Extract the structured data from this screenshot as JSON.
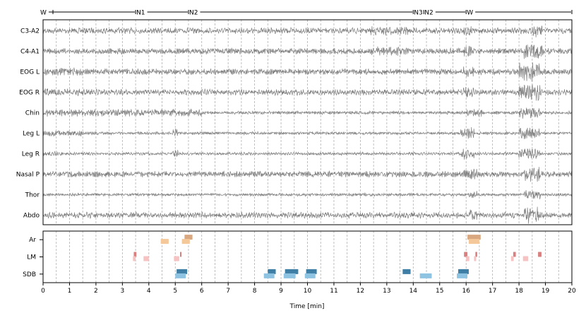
{
  "chart_data": [
    {
      "type": "line",
      "title": "",
      "xlabel": "",
      "ylabel": "",
      "xlim": [
        0,
        20
      ],
      "grid": "vertical dashed every 0.5 min",
      "trace_color": "#808080",
      "sleep_stages": [
        {
          "label": "W",
          "start": 0.0,
          "end": 3.5
        },
        {
          "label": "N1",
          "start": 3.5,
          "end": 5.5
        },
        {
          "label": "N2",
          "start": 5.5,
          "end": 14.0
        },
        {
          "label": "N3",
          "start": 14.0,
          "end": 14.4
        },
        {
          "label": "N2",
          "start": 14.4,
          "end": 16.0
        },
        {
          "label": "W",
          "start": 16.0,
          "end": 20.0
        }
      ],
      "channels": [
        {
          "name": "C3-A2",
          "amplitude": "medium",
          "bursts": [
            [
              12.4,
              13.8,
              1.6
            ],
            [
              15.9,
              16.2,
              1.8
            ],
            [
              18.5,
              18.9,
              2.2
            ]
          ]
        },
        {
          "name": "C4-A1",
          "amplitude": "medium",
          "bursts": [
            [
              12.4,
              13.8,
              1.5
            ],
            [
              15.9,
              16.2,
              1.8
            ],
            [
              18.2,
              18.9,
              2.6
            ]
          ]
        },
        {
          "name": "EOG L",
          "amplitude": "medium",
          "bursts": [
            [
              0.0,
              1.5,
              1.3
            ],
            [
              15.9,
              16.3,
              1.8
            ],
            [
              18.0,
              18.8,
              3.2
            ]
          ]
        },
        {
          "name": "EOG R",
          "amplitude": "medium",
          "bursts": [
            [
              0.0,
              1.5,
              1.3
            ],
            [
              15.9,
              16.3,
              1.8
            ],
            [
              18.0,
              18.8,
              3.2
            ]
          ]
        },
        {
          "name": "Chin",
          "amplitude": "high-to-low",
          "bursts": [
            [
              0.0,
              6.0,
              2.2
            ],
            [
              16.0,
              16.6,
              2.5
            ],
            [
              18.0,
              18.8,
              3.4
            ]
          ]
        },
        {
          "name": "Leg L",
          "amplitude": "low",
          "bursts": [
            [
              0.0,
              1.5,
              2.0
            ],
            [
              4.9,
              5.1,
              3.0
            ],
            [
              15.8,
              16.3,
              4.0
            ],
            [
              18.0,
              18.8,
              4.0
            ]
          ]
        },
        {
          "name": "Leg R",
          "amplitude": "low",
          "bursts": [
            [
              0.0,
              0.8,
              1.5
            ],
            [
              4.9,
              5.1,
              2.5
            ],
            [
              15.8,
              16.3,
              4.0
            ],
            [
              18.0,
              18.8,
              4.0
            ]
          ]
        },
        {
          "name": "Nasal P",
          "amplitude": "medium",
          "bursts": [
            [
              15.9,
              16.4,
              2.0
            ],
            [
              18.2,
              18.8,
              2.5
            ]
          ]
        },
        {
          "name": "Thor",
          "amplitude": "low",
          "bursts": [
            [
              16.1,
              16.4,
              2.5
            ],
            [
              18.2,
              18.8,
              3.0
            ]
          ]
        },
        {
          "name": "Abdo",
          "amplitude": "medium",
          "bursts": [
            [
              16.1,
              16.4,
              2.0
            ],
            [
              18.2,
              18.8,
              2.8
            ]
          ]
        }
      ]
    },
    {
      "type": "scatter",
      "title": "",
      "xlabel": "Time [min]",
      "ylabel": "",
      "xlim": [
        0,
        20
      ],
      "xticks": [
        "0",
        "1",
        "2",
        "3",
        "4",
        "5",
        "6",
        "7",
        "8",
        "9",
        "10",
        "11",
        "12",
        "13",
        "14",
        "15",
        "16",
        "17",
        "18",
        "19",
        "20"
      ],
      "grid": "vertical dashed every 0.5 min",
      "rows": [
        {
          "name": "Ar",
          "events": [
            {
              "start": 5.35,
              "end": 5.65,
              "level": "upper",
              "color": "#d9a880"
            },
            {
              "start": 4.45,
              "end": 4.75,
              "level": "lower",
              "color": "#f5c89a"
            },
            {
              "start": 5.25,
              "end": 5.55,
              "level": "lower",
              "color": "#f5c89a"
            },
            {
              "start": 16.05,
              "end": 16.55,
              "level": "upper",
              "color": "#d9a880"
            },
            {
              "start": 16.1,
              "end": 16.5,
              "level": "lower",
              "color": "#f5c89a"
            }
          ]
        },
        {
          "name": "LM",
          "events": [
            {
              "start": 3.43,
              "end": 3.53,
              "level": "upper",
              "color": "#d97f7f"
            },
            {
              "start": 5.18,
              "end": 5.23,
              "level": "upper",
              "color": "#d97f7f"
            },
            {
              "start": 15.92,
              "end": 16.05,
              "level": "upper",
              "color": "#d97f7f"
            },
            {
              "start": 16.35,
              "end": 16.42,
              "level": "upper",
              "color": "#d97f7f"
            },
            {
              "start": 17.78,
              "end": 17.88,
              "level": "upper",
              "color": "#d97f7f"
            },
            {
              "start": 18.72,
              "end": 18.85,
              "level": "upper",
              "color": "#d97f7f"
            },
            {
              "start": 3.4,
              "end": 3.5,
              "level": "lower",
              "color": "#f6c2c2"
            },
            {
              "start": 3.8,
              "end": 4.0,
              "level": "lower",
              "color": "#f6c2c2"
            },
            {
              "start": 4.95,
              "end": 5.15,
              "level": "lower",
              "color": "#f6c2c2"
            },
            {
              "start": 16.0,
              "end": 16.12,
              "level": "lower",
              "color": "#f6c2c2"
            },
            {
              "start": 16.3,
              "end": 16.38,
              "level": "lower",
              "color": "#f6c2c2"
            },
            {
              "start": 17.7,
              "end": 17.8,
              "level": "lower",
              "color": "#f6c2c2"
            },
            {
              "start": 18.15,
              "end": 18.35,
              "level": "lower",
              "color": "#f6c2c2"
            }
          ]
        },
        {
          "name": "SDB",
          "events": [
            {
              "start": 5.05,
              "end": 5.45,
              "level": "upper",
              "color": "#3f7fa6"
            },
            {
              "start": 8.5,
              "end": 8.8,
              "level": "upper",
              "color": "#3f7fa6"
            },
            {
              "start": 9.15,
              "end": 9.65,
              "level": "upper",
              "color": "#3f7fa6"
            },
            {
              "start": 9.95,
              "end": 10.35,
              "level": "upper",
              "color": "#3f7fa6"
            },
            {
              "start": 13.6,
              "end": 13.9,
              "level": "upper",
              "color": "#3f7fa6"
            },
            {
              "start": 15.7,
              "end": 16.1,
              "level": "upper",
              "color": "#3f7fa6"
            },
            {
              "start": 5.0,
              "end": 5.4,
              "level": "lower",
              "color": "#8fc3e2"
            },
            {
              "start": 8.35,
              "end": 8.75,
              "level": "lower",
              "color": "#8fc3e2"
            },
            {
              "start": 9.1,
              "end": 9.55,
              "level": "lower",
              "color": "#8fc3e2"
            },
            {
              "start": 9.9,
              "end": 10.3,
              "level": "lower",
              "color": "#8fc3e2"
            },
            {
              "start": 14.25,
              "end": 14.7,
              "level": "lower",
              "color": "#8fc3e2"
            },
            {
              "start": 15.65,
              "end": 16.05,
              "level": "lower",
              "color": "#8fc3e2"
            }
          ]
        }
      ]
    }
  ]
}
